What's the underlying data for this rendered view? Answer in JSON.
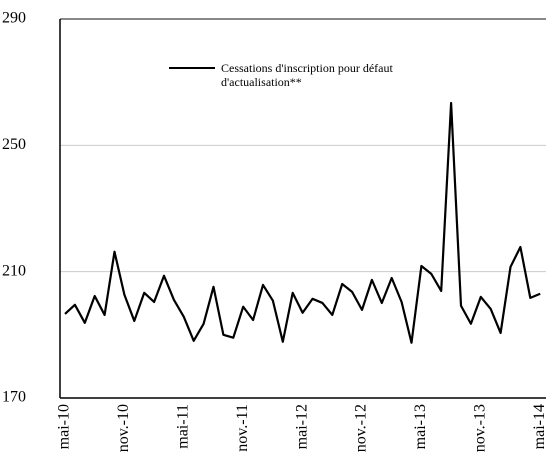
{
  "chart_data": {
    "type": "line",
    "categories": [
      "mai-10",
      null,
      null,
      null,
      null,
      null,
      "nov.-10",
      null,
      null,
      null,
      null,
      null,
      "mai-11",
      null,
      null,
      null,
      null,
      null,
      "nov.-11",
      null,
      null,
      null,
      null,
      null,
      "mai-12",
      null,
      null,
      null,
      null,
      null,
      "nov.-12",
      null,
      null,
      null,
      null,
      null,
      "mai-13",
      null,
      null,
      null,
      null,
      null,
      "nov.-13",
      null,
      null,
      null,
      null,
      null,
      "mai-14"
    ],
    "series": [
      {
        "name": "Cessations d'inscription pour défaut d'actualisation**",
        "color": "#000000",
        "values": [
          196.6,
          199.5,
          193.8,
          202.3,
          196.3,
          216.3,
          202.7,
          194.4,
          203.3,
          200.4,
          208.7,
          201.1,
          195.7,
          188.1,
          193.5,
          205.2,
          190.0,
          189.1,
          198.9,
          194.7,
          205.8,
          200.8,
          187.8,
          203.3,
          197.0,
          201.4,
          200.1,
          196.3,
          206.1,
          203.6,
          197.9,
          207.4,
          200.1,
          208.0,
          200.4,
          187.5,
          211.8,
          209.3,
          203.9,
          263.4,
          199.2,
          193.5,
          202.0,
          198.2,
          190.6,
          211.5,
          217.8,
          201.7,
          203.0
        ]
      }
    ],
    "ylim": [
      170,
      290
    ],
    "yticks": [
      170,
      210,
      250,
      290
    ],
    "grid": true
  }
}
